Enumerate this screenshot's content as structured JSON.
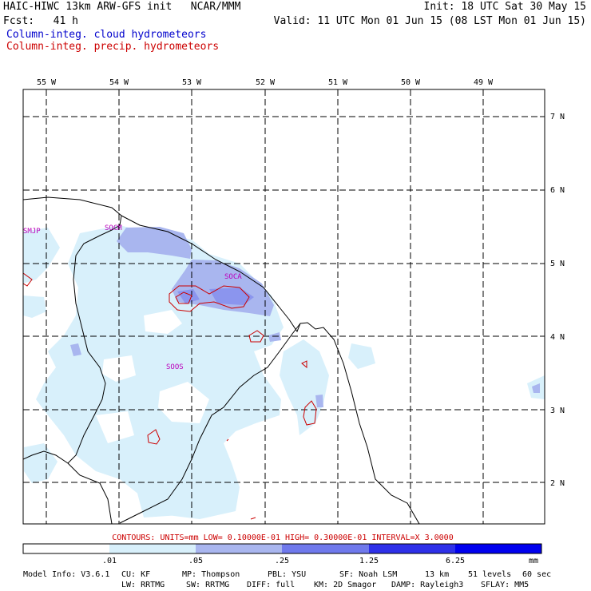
{
  "header": {
    "model": "HAIC-HIWC 13km ARW-GFS init   NCAR/MMM",
    "init": "Init: 18 UTC Sat 30 May 15",
    "fcst": "Fcst:   41 h",
    "valid": "Valid: 11 UTC Mon 01 Jun 15 (08 LST Mon 01 Jun 15)",
    "field_cloud": "Column-integ. cloud hydrometeors",
    "field_precip": "Column-integ. precip. hydrometeors"
  },
  "map": {
    "lon_labels": [
      "55 W",
      "54 W",
      "53 W",
      "52 W",
      "51 W",
      "50 W",
      "49 W"
    ],
    "lat_labels": [
      "7 N",
      "6 N",
      "5 N",
      "4 N",
      "3 N",
      "2 N"
    ],
    "place_labels": [
      "SMJP",
      "SOCM",
      "SOCA",
      "SOOS"
    ],
    "colors": {
      "shade1": "#d8f0fb",
      "shade2": "#a9b6ef",
      "shade3": "#6f79ec",
      "shade4": "#2e30e8",
      "shade5": "#0000ee",
      "contour": "#cc0000",
      "label": "#bb00bb"
    }
  },
  "contours_text": "CONTOURS:  UNITS=mm  LOW= 0.10000E-01  HIGH= 0.30000E-01  INTERVAL=X  3.0000",
  "legend": {
    "ticks": [
      ".01",
      ".05",
      ".25",
      "1.25",
      "6.25"
    ],
    "units": "mm",
    "colors": [
      "#ffffff",
      "#d8f0fb",
      "#a9b6ef",
      "#6f79ec",
      "#2e30e8",
      "#0000ee"
    ]
  },
  "footer": {
    "line1": [
      "Model Info: V3.6.1",
      "CU: KF",
      "MP: Thompson",
      "PBL: YSU",
      "SF: Noah LSM",
      "13 km",
      "51 levels",
      "60 sec"
    ],
    "line2": [
      "LW: RRTMG",
      "SW: RRTMG",
      "DIFF: full",
      "KM: 2D Smagor",
      "DAMP: Rayleigh3",
      "SFLAY: MM5"
    ]
  }
}
